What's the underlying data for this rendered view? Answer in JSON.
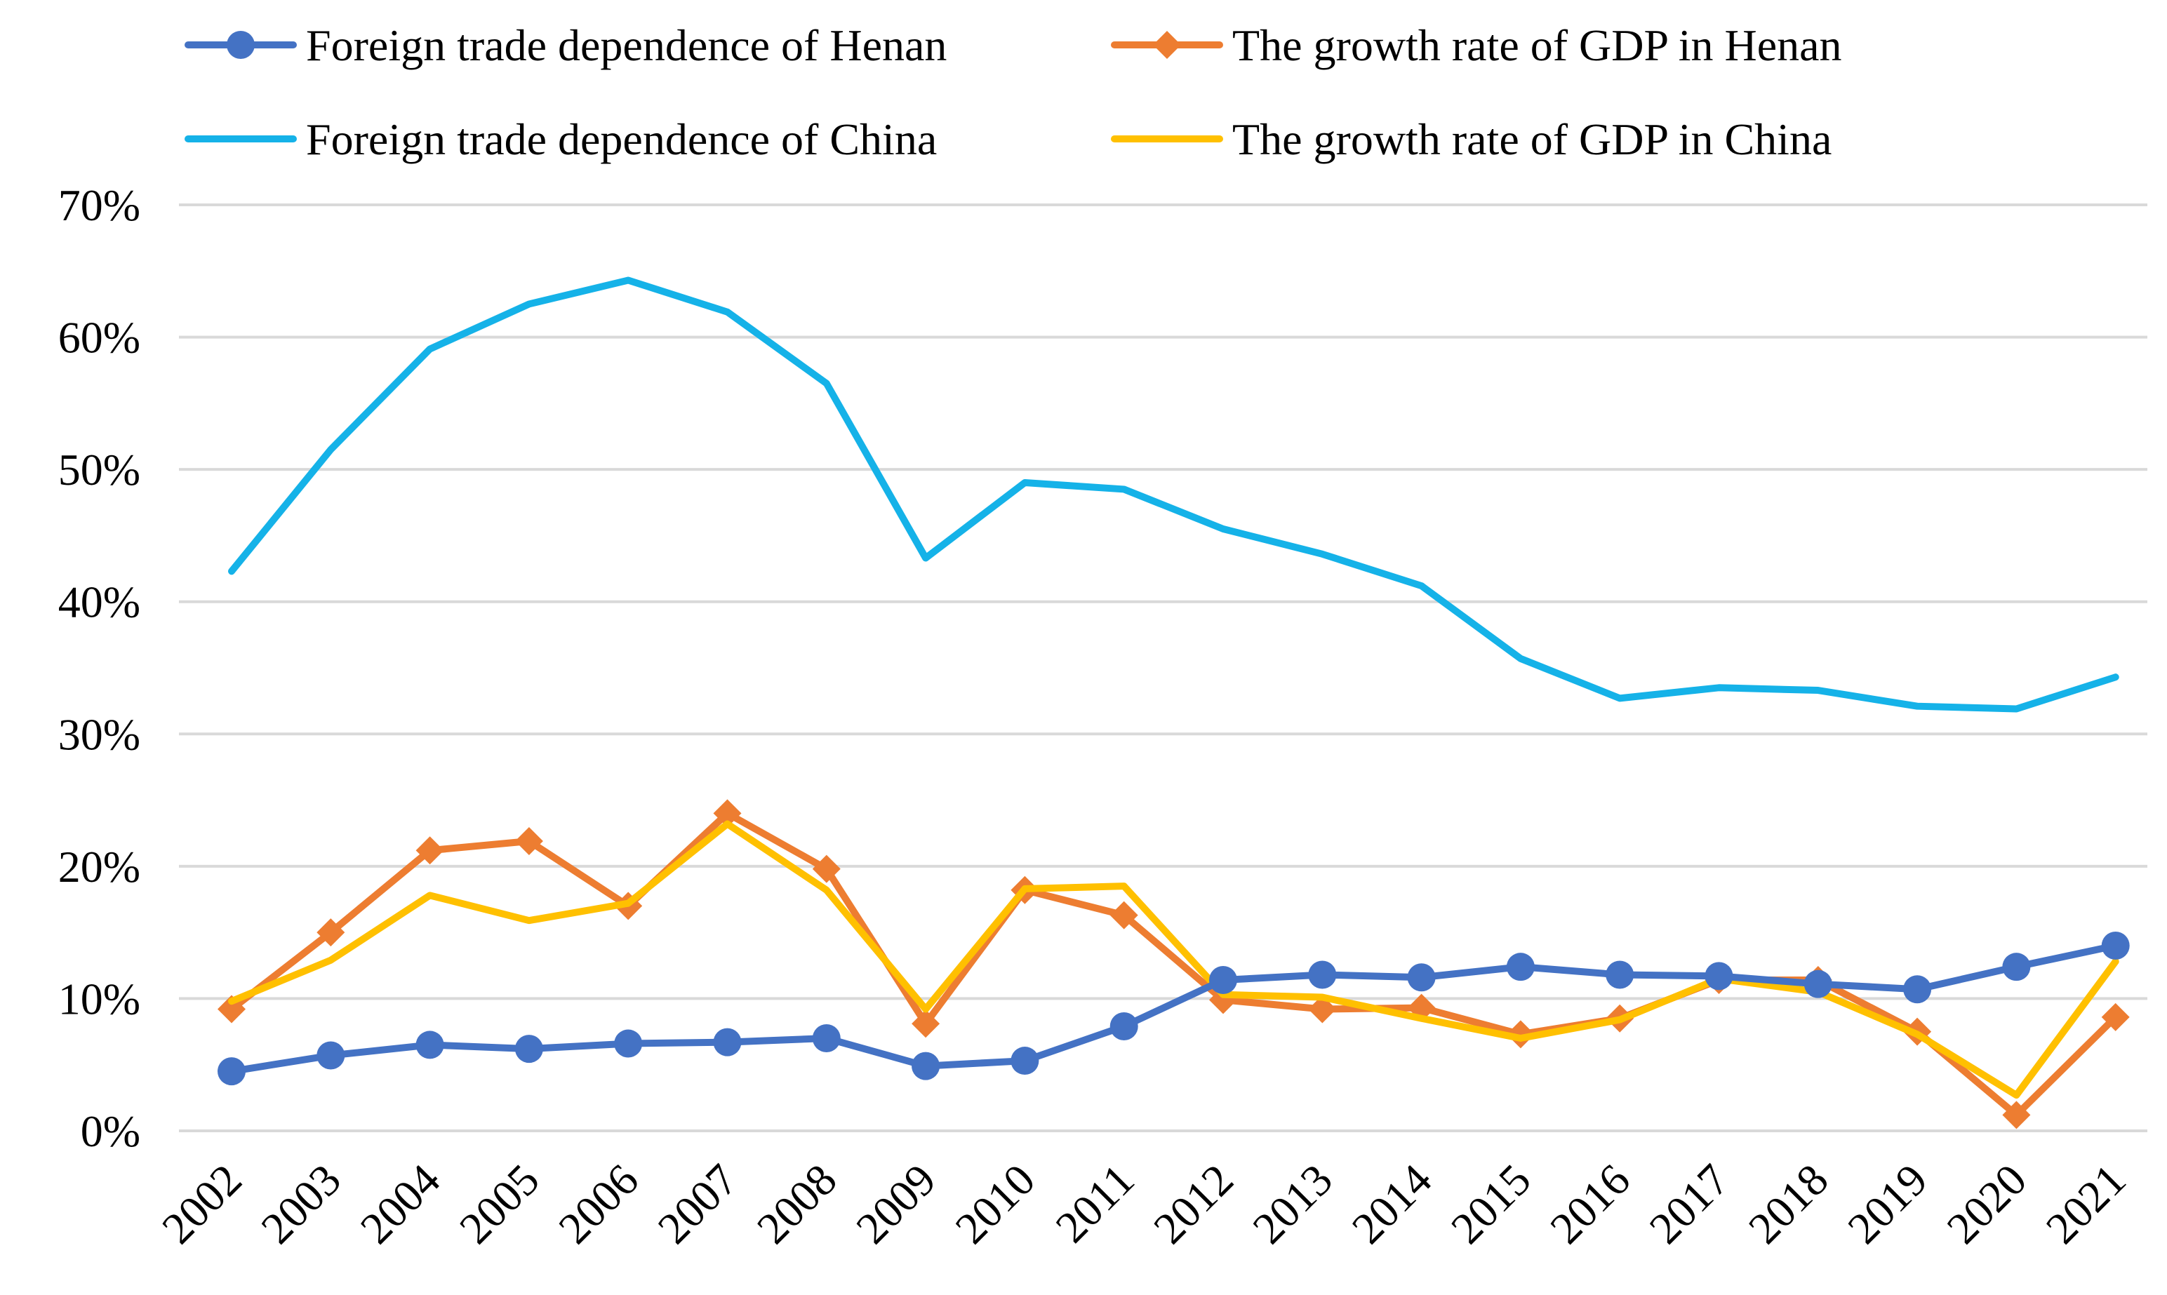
{
  "chart_data": {
    "type": "line",
    "title": "",
    "xlabel": "",
    "ylabel": "",
    "x": [
      "2002",
      "2003",
      "2004",
      "2005",
      "2006",
      "2007",
      "2008",
      "2009",
      "2010",
      "2011",
      "2012",
      "2013",
      "2014",
      "2015",
      "2016",
      "2017",
      "2018",
      "2019",
      "2020",
      "2021"
    ],
    "ylim": [
      0,
      70
    ],
    "yticks": [
      0,
      10,
      20,
      30,
      40,
      50,
      60,
      70
    ],
    "ytick_labels": [
      "0%",
      "10%",
      "20%",
      "30%",
      "40%",
      "50%",
      "60%",
      "70%"
    ],
    "grid": true,
    "legend_position": "top",
    "series": [
      {
        "name": "Foreign trade dependence of Henan",
        "color": "#4472C4",
        "marker": "circle",
        "values": [
          4.5,
          5.7,
          6.5,
          6.2,
          6.6,
          6.7,
          7.0,
          4.9,
          5.3,
          7.9,
          11.4,
          11.8,
          11.6,
          12.4,
          11.8,
          11.7,
          11.1,
          10.7,
          12.4,
          14.0
        ]
      },
      {
        "name": "The growth rate of GDP in Henan",
        "color": "#ED7D31",
        "marker": "diamond",
        "values": [
          9.2,
          15.0,
          21.2,
          21.9,
          17.0,
          24.0,
          19.8,
          8.1,
          18.2,
          16.3,
          9.9,
          9.2,
          9.3,
          7.3,
          8.5,
          11.4,
          11.4,
          7.5,
          1.2,
          8.6
        ]
      },
      {
        "name": "Foreign trade dependence of China",
        "color": "#15B2E8",
        "marker": "none",
        "values": [
          42.3,
          51.5,
          59.1,
          62.5,
          64.3,
          61.9,
          56.5,
          43.3,
          49.0,
          48.5,
          45.5,
          43.6,
          41.2,
          35.7,
          32.7,
          33.5,
          33.3,
          32.1,
          31.9,
          34.3
        ]
      },
      {
        "name": "The growth rate of GDP in China",
        "color": "#FFC000",
        "marker": "none",
        "values": [
          9.8,
          12.9,
          17.8,
          15.9,
          17.2,
          23.2,
          18.2,
          9.2,
          18.3,
          18.5,
          10.3,
          10.1,
          8.5,
          7.0,
          8.4,
          11.5,
          10.5,
          7.3,
          2.7,
          12.8
        ]
      }
    ]
  }
}
